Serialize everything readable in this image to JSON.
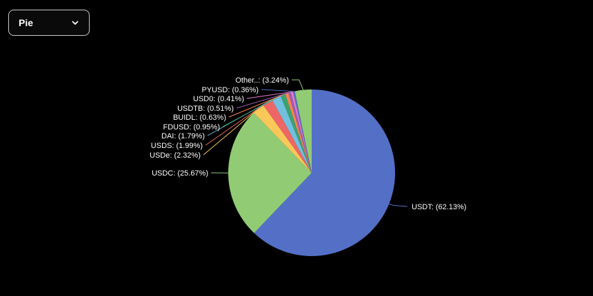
{
  "selector": {
    "selected": "Pie",
    "icon": "chevron-down-icon"
  },
  "chart_data": {
    "type": "pie",
    "slices": [
      {
        "name": "USDT",
        "value": 62.13,
        "label": "USDT: (62.13%)",
        "color": "#5470c6"
      },
      {
        "name": "USDC",
        "value": 25.67,
        "label": "USDC: (25.67%)",
        "color": "#91cc75"
      },
      {
        "name": "USDe",
        "value": 2.32,
        "label": "USDe: (2.32%)",
        "color": "#fac858"
      },
      {
        "name": "USDS",
        "value": 1.99,
        "label": "USDS: (1.99%)",
        "color": "#ee6666"
      },
      {
        "name": "DAI",
        "value": 1.79,
        "label": "DAI: (1.79%)",
        "color": "#73c0de"
      },
      {
        "name": "FDUSD",
        "value": 0.95,
        "label": "FDUSD: (0.95%)",
        "color": "#3ba272"
      },
      {
        "name": "BUIDL",
        "value": 0.63,
        "label": "BUIDL: (0.63%)",
        "color": "#fc8452"
      },
      {
        "name": "USDTB",
        "value": 0.51,
        "label": "USDTB: (0.51%)",
        "color": "#9a60b4"
      },
      {
        "name": "USD0",
        "value": 0.41,
        "label": "USD0: (0.41%)",
        "color": "#ea7ccc"
      },
      {
        "name": "PYUSD",
        "value": 0.36,
        "label": "PYUSD: (0.36%)",
        "color": "#5470c6"
      },
      {
        "name": "Other..",
        "value": 3.24,
        "label": "Other..: (3.24%)",
        "color": "#91cc75"
      }
    ]
  }
}
